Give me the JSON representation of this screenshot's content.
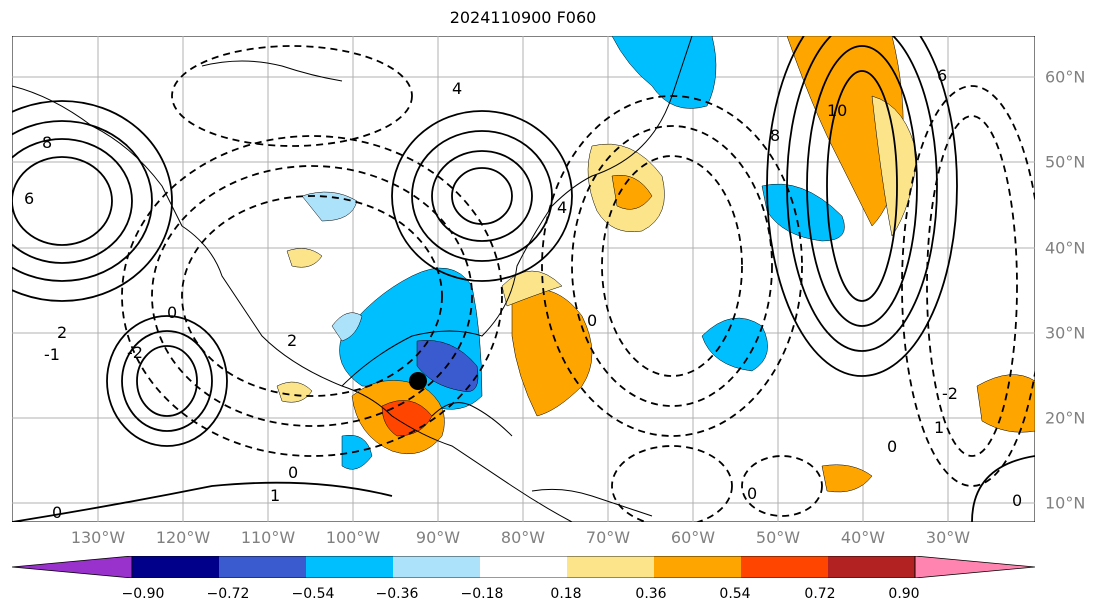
{
  "title": "2024110900 F060",
  "map": {
    "longitude_labels": [
      "130°W",
      "120°W",
      "110°W",
      "100°W",
      "90°W",
      "80°W",
      "70°W",
      "60°W",
      "50°W",
      "40°W",
      "30°W"
    ],
    "latitude_labels": [
      "60°N",
      "50°N",
      "40°N",
      "30°N",
      "20°N",
      "10°N"
    ],
    "contour_labels": [
      "8",
      "6",
      "4",
      "2",
      "0",
      "-2",
      "4",
      "6",
      "8",
      "10",
      "2",
      "-1",
      "1",
      "0",
      "0",
      "0",
      "0",
      "0",
      "-2",
      "1",
      "0"
    ],
    "marker": "black-dot-storm-center"
  },
  "colorbar": {
    "labels": [
      "−0.90",
      "−0.72",
      "−0.54",
      "−0.36",
      "−0.18",
      "0.18",
      "0.36",
      "0.54",
      "0.72",
      "0.90"
    ],
    "colors": [
      "#9932cc",
      "#00008b",
      "#3a5bd0",
      "#00bfff",
      "#ade2fb",
      "#ffffff",
      "#fbe48a",
      "#ffa500",
      "#ff4500",
      "#b22222",
      "#ff85b0"
    ]
  }
}
